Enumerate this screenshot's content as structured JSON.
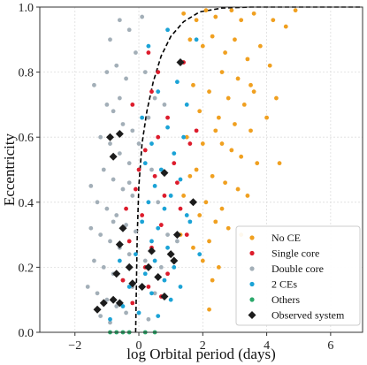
{
  "chart_data": {
    "type": "scatter",
    "xlabel": "log Orbital period (days)",
    "ylabel": "Eccentricity",
    "xlim": [
      -3.1,
      7.0
    ],
    "ylim": [
      0.0,
      1.0
    ],
    "xticks": [
      -2,
      0,
      2,
      4,
      6
    ],
    "yticks": [
      0.0,
      0.2,
      0.4,
      0.6,
      0.8,
      1.0
    ],
    "xtick_labels": [
      "−2",
      "0",
      "2",
      "4",
      "6"
    ],
    "ytick_labels": [
      "0.0",
      "0.2",
      "0.4",
      "0.6",
      "0.8",
      "1.0"
    ],
    "grid": true,
    "legend_position": "bottom-right",
    "series": [
      {
        "name": "No CE",
        "color": "#f0a020",
        "marker": "circle",
        "points": [
          [
            1.4,
            0.98
          ],
          [
            1.8,
            0.96
          ],
          [
            2.1,
            0.99
          ],
          [
            2.4,
            0.97
          ],
          [
            2.9,
            0.99
          ],
          [
            3.2,
            0.96
          ],
          [
            3.6,
            0.98
          ],
          [
            4.2,
            0.96
          ],
          [
            4.6,
            0.94
          ],
          [
            4.9,
            0.99
          ],
          [
            1.6,
            0.9
          ],
          [
            2.0,
            0.88
          ],
          [
            2.3,
            0.91
          ],
          [
            2.7,
            0.86
          ],
          [
            3.0,
            0.9
          ],
          [
            3.4,
            0.84
          ],
          [
            3.8,
            0.88
          ],
          [
            4.1,
            0.82
          ],
          [
            2.6,
            0.8
          ],
          [
            3.1,
            0.78
          ],
          [
            1.7,
            0.76
          ],
          [
            2.2,
            0.74
          ],
          [
            2.8,
            0.72
          ],
          [
            3.3,
            0.7
          ],
          [
            3.6,
            0.74
          ],
          [
            4.3,
            0.72
          ],
          [
            1.9,
            0.68
          ],
          [
            2.5,
            0.66
          ],
          [
            3.0,
            0.64
          ],
          [
            3.5,
            0.62
          ],
          [
            1.5,
            0.6
          ],
          [
            2.0,
            0.58
          ],
          [
            2.4,
            0.62
          ],
          [
            2.9,
            0.56
          ],
          [
            3.2,
            0.54
          ],
          [
            3.7,
            0.52
          ],
          [
            4.4,
            0.52
          ],
          [
            1.8,
            0.5
          ],
          [
            2.3,
            0.48
          ],
          [
            2.7,
            0.46
          ],
          [
            3.1,
            0.44
          ],
          [
            3.4,
            0.42
          ],
          [
            2.1,
            0.4
          ],
          [
            2.6,
            0.38
          ],
          [
            1.9,
            0.36
          ],
          [
            2.4,
            0.34
          ],
          [
            2.8,
            0.32
          ],
          [
            3.2,
            0.3
          ],
          [
            2.2,
            0.28
          ],
          [
            1.7,
            0.26
          ],
          [
            2.0,
            0.22
          ],
          [
            2.5,
            0.2
          ],
          [
            2.3,
            0.16
          ],
          [
            1.6,
            0.48
          ],
          [
            1.4,
            0.42
          ],
          [
            2.6,
            0.58
          ],
          [
            3.5,
            0.76
          ],
          [
            4.0,
            0.66
          ],
          [
            2.2,
            0.07
          ],
          [
            1.3,
            0.3
          ]
        ]
      },
      {
        "name": "Single core",
        "color": "#dd1c2c",
        "marker": "circle",
        "points": [
          [
            0.3,
            0.86
          ],
          [
            0.6,
            0.8
          ],
          [
            1.4,
            0.83
          ],
          [
            0.4,
            0.74
          ],
          [
            -0.2,
            0.7
          ],
          [
            0.9,
            0.66
          ],
          [
            1.6,
            0.58
          ],
          [
            0.2,
            0.56
          ],
          [
            1.1,
            0.52
          ],
          [
            0.5,
            0.48
          ],
          [
            -0.1,
            0.44
          ],
          [
            0.8,
            0.42
          ],
          [
            1.3,
            0.38
          ],
          [
            0.1,
            0.36
          ],
          [
            0.7,
            0.33
          ],
          [
            1.5,
            0.3
          ],
          [
            -0.3,
            0.28
          ],
          [
            0.4,
            0.26
          ],
          [
            1.0,
            0.24
          ],
          [
            0.2,
            0.2
          ],
          [
            0.9,
            0.18
          ],
          [
            -0.5,
            0.16
          ],
          [
            0.3,
            0.14
          ],
          [
            0.7,
            0.11
          ],
          [
            -0.2,
            0.09
          ],
          [
            1.2,
            0.46
          ],
          [
            0.6,
            0.6
          ],
          [
            -0.4,
            0.38
          ],
          [
            1.8,
            0.62
          ],
          [
            0.0,
            0.5
          ]
        ]
      },
      {
        "name": "Double core",
        "color": "#a3afb8",
        "marker": "circle",
        "points": [
          [
            -1.4,
            0.76
          ],
          [
            -0.9,
            0.9
          ],
          [
            -0.6,
            0.96
          ],
          [
            -0.3,
            0.93
          ],
          [
            0.1,
            0.97
          ],
          [
            -0.1,
            0.86
          ],
          [
            -0.7,
            0.82
          ],
          [
            -0.4,
            0.78
          ],
          [
            -1.0,
            0.7
          ],
          [
            -0.8,
            0.68
          ],
          [
            -0.5,
            0.64
          ],
          [
            -0.2,
            0.62
          ],
          [
            -1.2,
            0.6
          ],
          [
            -0.9,
            0.58
          ],
          [
            -0.6,
            0.55
          ],
          [
            -0.3,
            0.52
          ],
          [
            -1.1,
            0.5
          ],
          [
            -0.8,
            0.47
          ],
          [
            -0.5,
            0.44
          ],
          [
            -0.2,
            0.42
          ],
          [
            -1.3,
            0.4
          ],
          [
            -1.0,
            0.38
          ],
          [
            -0.7,
            0.36
          ],
          [
            -0.4,
            0.33
          ],
          [
            -0.1,
            0.31
          ],
          [
            -1.2,
            0.3
          ],
          [
            -0.9,
            0.28
          ],
          [
            -0.6,
            0.26
          ],
          [
            -0.3,
            0.24
          ],
          [
            -1.4,
            0.22
          ],
          [
            -1.1,
            0.2
          ],
          [
            -0.8,
            0.18
          ],
          [
            -0.5,
            0.16
          ],
          [
            -0.2,
            0.14
          ],
          [
            -1.3,
            0.12
          ],
          [
            -1.0,
            0.1
          ],
          [
            -0.7,
            0.08
          ],
          [
            -0.4,
            0.06
          ],
          [
            -1.2,
            0.05
          ],
          [
            -0.9,
            0.03
          ],
          [
            0.2,
            0.8
          ],
          [
            0.5,
            0.72
          ],
          [
            0.3,
            0.66
          ],
          [
            0.8,
            0.7
          ],
          [
            0.4,
            0.5
          ],
          [
            0.6,
            0.4
          ],
          [
            0.9,
            0.3
          ],
          [
            0.2,
            0.22
          ],
          [
            0.5,
            0.12
          ],
          [
            -1.5,
            0.32
          ],
          [
            -1.6,
            0.14
          ],
          [
            -0.6,
            0.72
          ],
          [
            -1.0,
            0.8
          ],
          [
            0.0,
            0.58
          ],
          [
            -0.3,
            0.46
          ],
          [
            1.2,
            0.28
          ],
          [
            0.7,
            0.2
          ],
          [
            -0.8,
            0.34
          ],
          [
            -1.5,
            0.45
          ],
          [
            0.3,
            0.04
          ]
        ]
      },
      {
        "name": "2 CEs",
        "color": "#1ba3d6",
        "marker": "circle",
        "points": [
          [
            0.9,
            0.93
          ],
          [
            1.8,
            0.9
          ],
          [
            0.3,
            0.88
          ],
          [
            1.2,
            0.77
          ],
          [
            0.6,
            0.74
          ],
          [
            1.5,
            0.7
          ],
          [
            0.1,
            0.66
          ],
          [
            0.9,
            0.63
          ],
          [
            1.4,
            0.6
          ],
          [
            0.4,
            0.58
          ],
          [
            1.1,
            0.55
          ],
          [
            0.2,
            0.52
          ],
          [
            0.7,
            0.5
          ],
          [
            1.3,
            0.47
          ],
          [
            0.5,
            0.45
          ],
          [
            1.0,
            0.42
          ],
          [
            0.3,
            0.4
          ],
          [
            0.8,
            0.38
          ],
          [
            1.5,
            0.36
          ],
          [
            0.1,
            0.34
          ],
          [
            0.6,
            0.32
          ],
          [
            1.2,
            0.3
          ],
          [
            0.4,
            0.28
          ],
          [
            0.9,
            0.26
          ],
          [
            -0.1,
            0.24
          ],
          [
            0.5,
            0.22
          ],
          [
            1.1,
            0.2
          ],
          [
            0.2,
            0.18
          ],
          [
            0.8,
            0.16
          ],
          [
            -0.3,
            0.14
          ],
          [
            0.4,
            0.12
          ],
          [
            1.0,
            0.1
          ],
          [
            -0.5,
            0.08
          ],
          [
            0.0,
            0.06
          ],
          [
            0.6,
            0.05
          ],
          [
            -0.9,
            0.04
          ],
          [
            1.6,
            0.34
          ],
          [
            1.9,
            0.24
          ],
          [
            -0.6,
            0.22
          ],
          [
            1.3,
            0.14
          ]
        ]
      },
      {
        "name": "Others",
        "color": "#2aa86a",
        "marker": "circle",
        "points": [
          [
            -0.9,
            0.0
          ],
          [
            -0.7,
            0.0
          ],
          [
            -0.5,
            0.0
          ],
          [
            -0.3,
            0.0
          ],
          [
            0.2,
            0.0
          ],
          [
            0.5,
            0.0
          ]
        ]
      },
      {
        "name": "Observed system",
        "color": "#1c1c1c",
        "marker": "diamond",
        "points": [
          [
            1.3,
            0.83
          ],
          [
            -0.9,
            0.6
          ],
          [
            -0.6,
            0.61
          ],
          [
            -0.8,
            0.54
          ],
          [
            0.8,
            0.49
          ],
          [
            1.7,
            0.4
          ],
          [
            -0.5,
            0.32
          ],
          [
            1.2,
            0.3
          ],
          [
            -0.6,
            0.27
          ],
          [
            0.4,
            0.25
          ],
          [
            1.0,
            0.24
          ],
          [
            1.1,
            0.22
          ],
          [
            -0.3,
            0.2
          ],
          [
            0.3,
            0.2
          ],
          [
            -0.7,
            0.18
          ],
          [
            0.6,
            0.17
          ],
          [
            -0.2,
            0.15
          ],
          [
            0.1,
            0.14
          ],
          [
            0.8,
            0.11
          ],
          [
            -1.1,
            0.09
          ],
          [
            -0.6,
            0.09
          ],
          [
            -0.8,
            0.1
          ],
          [
            -1.3,
            0.07
          ]
        ]
      }
    ],
    "curve": {
      "style": "dashed",
      "color": "#000000",
      "points": [
        [
          -0.1,
          0.0
        ],
        [
          -0.05,
          0.3
        ],
        [
          0.0,
          0.45
        ],
        [
          0.1,
          0.58
        ],
        [
          0.25,
          0.68
        ],
        [
          0.45,
          0.77
        ],
        [
          0.7,
          0.85
        ],
        [
          1.0,
          0.91
        ],
        [
          1.4,
          0.955
        ],
        [
          1.9,
          0.985
        ],
        [
          2.6,
          0.997
        ],
        [
          3.5,
          1.0
        ],
        [
          5.0,
          1.0
        ],
        [
          7.0,
          1.0
        ]
      ]
    }
  }
}
